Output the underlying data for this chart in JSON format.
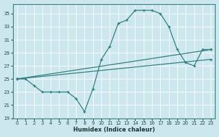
{
  "xlabel": "Humidex (Indice chaleur)",
  "bg_color": "#cce8ee",
  "line_color": "#2e7d7d",
  "grid_color": "#aacccc",
  "xlim": [
    -0.5,
    23.5
  ],
  "ylim": [
    19,
    36.5
  ],
  "yticks": [
    19,
    21,
    23,
    25,
    27,
    29,
    31,
    33,
    35
  ],
  "xticks": [
    0,
    1,
    2,
    3,
    4,
    5,
    6,
    7,
    8,
    9,
    10,
    11,
    12,
    13,
    14,
    15,
    16,
    17,
    18,
    19,
    20,
    21,
    22,
    23
  ],
  "curve_x": [
    0,
    1,
    2,
    3,
    4,
    5,
    6,
    7,
    8,
    9,
    10,
    11,
    12,
    13,
    14,
    15,
    16,
    17,
    18,
    19,
    20,
    21,
    22,
    23
  ],
  "curve_y": [
    25,
    25,
    24,
    23,
    23,
    23,
    23,
    22,
    20,
    23.5,
    28,
    30,
    33.5,
    34,
    35.5,
    35.5,
    35.5,
    35,
    33,
    29.5,
    27.5,
    27,
    29.5,
    29.5
  ],
  "line1_x": [
    0,
    23
  ],
  "line1_y": [
    25,
    29.5
  ],
  "line2_x": [
    0,
    23
  ],
  "line2_y": [
    25,
    28.0
  ]
}
